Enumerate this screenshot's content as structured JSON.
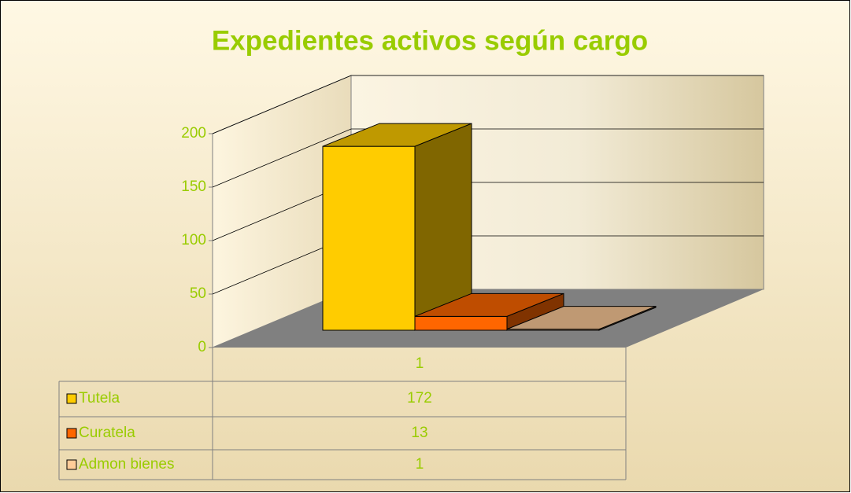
{
  "chart_data": {
    "type": "bar3d",
    "title": "Expedientes activos según cargo",
    "categories": [
      "1"
    ],
    "series": [
      {
        "name": "Tutela",
        "color": "#FFCC00",
        "values": [
          172
        ]
      },
      {
        "name": "Curatela",
        "color": "#FF6600",
        "values": [
          13
        ]
      },
      {
        "name": "Admon bienes",
        "color": "#FFCC99",
        "values": [
          1
        ]
      }
    ],
    "ylim": [
      0,
      200
    ],
    "yticks": [
      0,
      50,
      100,
      150,
      200
    ],
    "grid": true,
    "legend": "table"
  }
}
